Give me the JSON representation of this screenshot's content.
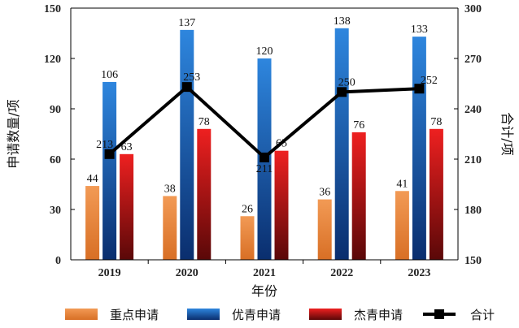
{
  "chart_data": {
    "type": "bar",
    "categories": [
      "2019",
      "2020",
      "2021",
      "2022",
      "2023"
    ],
    "xlabel": "年份",
    "ylabel": "申请数量/项",
    "y2label": "合计/项",
    "ylim": [
      0,
      150
    ],
    "y2lim": [
      150,
      300
    ],
    "yticks": [
      0,
      30,
      60,
      90,
      120,
      150
    ],
    "y2ticks": [
      150,
      180,
      210,
      240,
      270,
      300
    ],
    "series": [
      {
        "name": "重点申请",
        "type": "bar",
        "axis": "left",
        "color": "#E8823A",
        "values": [
          44,
          38,
          26,
          36,
          41
        ]
      },
      {
        "name": "优青申请",
        "type": "bar",
        "axis": "left",
        "color": "#1F6FC8",
        "values": [
          106,
          137,
          120,
          138,
          133
        ]
      },
      {
        "name": "杰青申请",
        "type": "bar",
        "axis": "left",
        "color": "#D9181C",
        "values": [
          63,
          78,
          65,
          76,
          78
        ]
      },
      {
        "name": "合计",
        "type": "line",
        "axis": "right",
        "color": "#000000",
        "values": [
          213,
          253,
          211,
          250,
          252
        ]
      }
    ],
    "legend_position": "bottom",
    "grid": false
  }
}
